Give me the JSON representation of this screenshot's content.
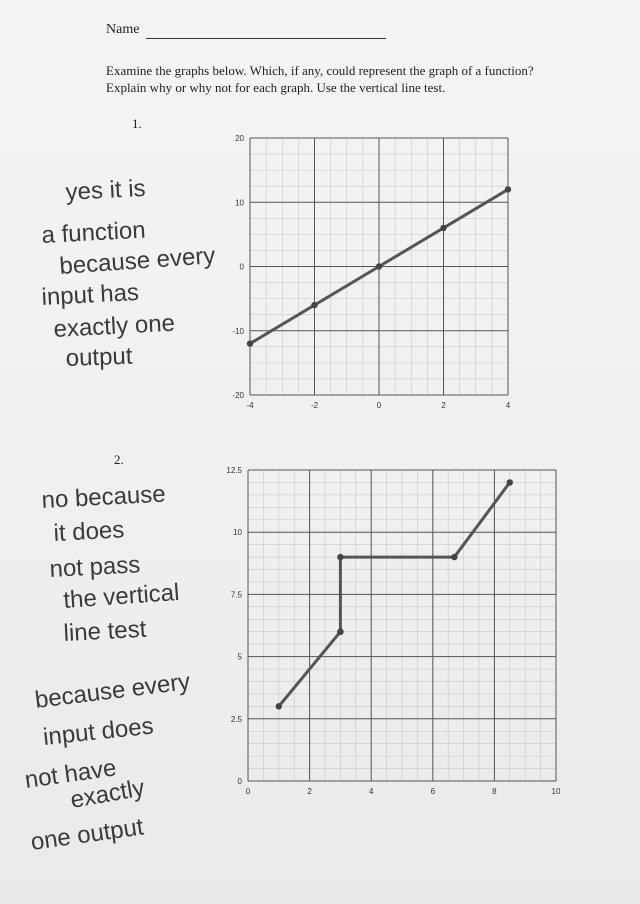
{
  "header": {
    "name_label": "Name",
    "instructions_line1": "Examine the graphs below. Which, if any, could represent the graph of a function?",
    "instructions_line2": "Explain why or why not for each graph. Use the vertical line test."
  },
  "questions": [
    {
      "number": "1.",
      "handwritten_answer": [
        "yes it is",
        "a function",
        "because every",
        "input has",
        "exactly one",
        "output"
      ]
    },
    {
      "number": "2.",
      "handwritten_answer": [
        "no because",
        "it does",
        "not pass",
        "the vertical",
        "line test"
      ],
      "handwritten_answer_2": [
        "because every",
        "input does",
        "not have",
        "exactly",
        "one output"
      ]
    }
  ],
  "chart_data": [
    {
      "type": "line",
      "x": [
        -4,
        -2,
        0,
        2,
        4
      ],
      "y": [
        -12,
        -6,
        0,
        6,
        12
      ],
      "xlim": [
        -4,
        4
      ],
      "ylim": [
        -20,
        20
      ],
      "x_ticks": [
        -4,
        -2,
        0,
        2,
        4
      ],
      "y_ticks": [
        -20,
        -10,
        0,
        10,
        20
      ],
      "grid": true,
      "line_color": "#555555"
    },
    {
      "type": "line",
      "x": [
        1,
        3,
        3,
        3,
        6.7,
        8.5
      ],
      "y": [
        3,
        6,
        6,
        9,
        9,
        12
      ],
      "xlim": [
        0,
        10
      ],
      "ylim": [
        0,
        12.5
      ],
      "x_ticks": [
        0,
        2,
        4,
        6,
        8,
        10
      ],
      "y_ticks": [
        0,
        2.5,
        5,
        7.5,
        10,
        12.5
      ],
      "grid": true,
      "line_color": "#555555"
    }
  ]
}
